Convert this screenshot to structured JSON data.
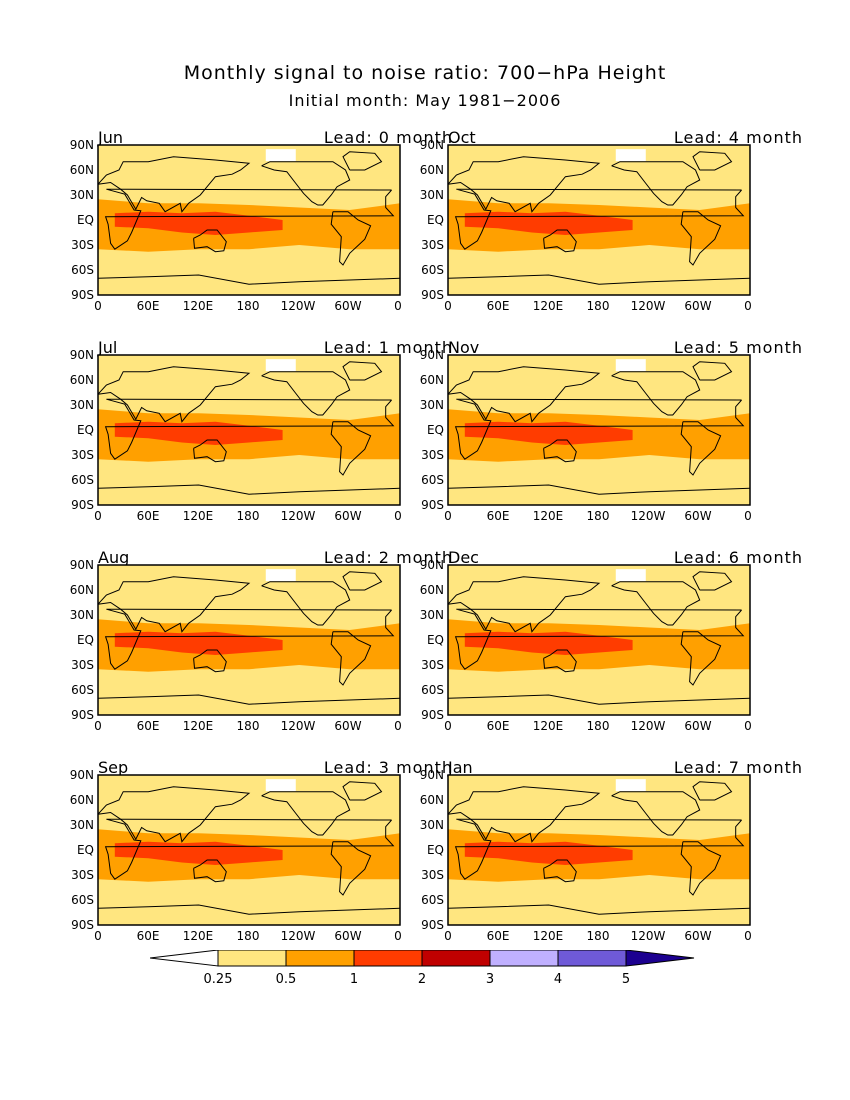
{
  "title": "Monthly signal to noise ratio: 700−hPa Height",
  "subtitle": "Initial month: May 1981−2006",
  "axes": {
    "y_ticks": [
      "90N",
      "60N",
      "30N",
      "EQ",
      "30S",
      "60S",
      "90S"
    ],
    "x_ticks": [
      "0",
      "60E",
      "120E",
      "180",
      "120W",
      "60W",
      "0"
    ]
  },
  "panels": [
    {
      "month": "Jun",
      "lead": "Lead: 0 month"
    },
    {
      "month": "Oct",
      "lead": "Lead: 4 month"
    },
    {
      "month": "Jul",
      "lead": "Lead: 1 month"
    },
    {
      "month": "Nov",
      "lead": "Lead: 5 month"
    },
    {
      "month": "Aug",
      "lead": "Lead: 2 month"
    },
    {
      "month": "Dec",
      "lead": "Lead: 6 month"
    },
    {
      "month": "Sep",
      "lead": "Lead: 3 month"
    },
    {
      "month": "Jan",
      "lead": "Lead: 7 month"
    }
  ],
  "colorbar": {
    "labels": [
      "0.25",
      "0.5",
      "1",
      "2",
      "3",
      "4",
      "5"
    ],
    "colors": [
      "#ffffff",
      "#ffe680",
      "#ffa000",
      "#ff3c00",
      "#c00000",
      "#c0b0ff",
      "#6f5ad8",
      "#1c0090"
    ]
  }
}
